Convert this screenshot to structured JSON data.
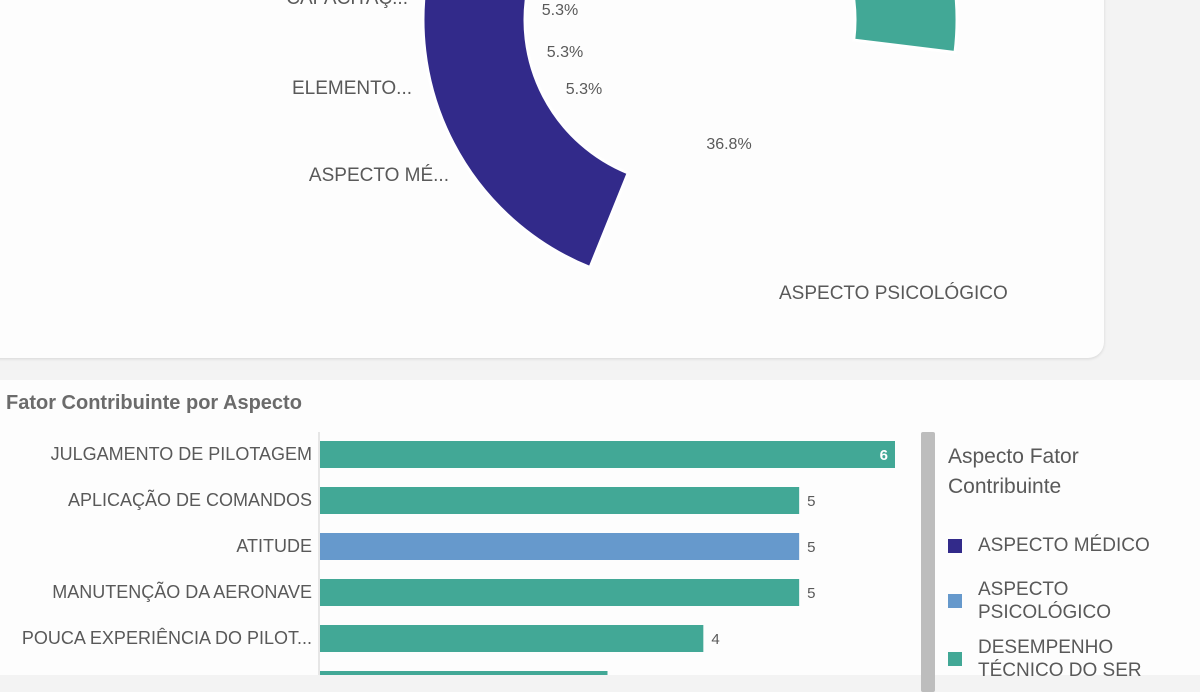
{
  "chart_data": [
    {
      "type": "pie",
      "variant": "donut",
      "slices": [
        {
          "label": "ASPECTO PSICOLÓGICO",
          "value": 36.8,
          "pct_label": "36.8%",
          "color": "#322a8a"
        },
        {
          "label": "ASPECTO MÉ...",
          "value": 5.3,
          "pct_label": "5.3%",
          "color": "#322a8a"
        },
        {
          "label": "ELEMENTO...",
          "value": 5.3,
          "pct_label": "5.3%",
          "color": "#42a896"
        },
        {
          "label": "CAPACITAÇ...",
          "value": 5.3,
          "pct_label": "5.3%",
          "color": "#42a896"
        },
        {
          "label": "",
          "value": 5.3,
          "pct_label": "",
          "color": "#42a896"
        }
      ]
    },
    {
      "type": "bar",
      "orientation": "horizontal",
      "title": "Fator Contribuinte por Aspecto",
      "categories": [
        "JULGAMENTO DE PILOTAGEM",
        "APLICAÇÃO DE COMANDOS",
        "ATITUDE",
        "MANUTENÇÃO DA AERONAVE",
        "POUCA EXPERIÊNCIA DO PILOT...",
        ""
      ],
      "values": [
        6,
        5,
        5,
        5,
        4,
        3
      ],
      "value_labels": [
        "6",
        "5",
        "5",
        "5",
        "4",
        ""
      ],
      "colors": [
        "#42a896",
        "#42a896",
        "#6699cc",
        "#42a896",
        "#42a896",
        "#42a896"
      ],
      "xlim": [
        0,
        6
      ],
      "legend": {
        "title": "Aspecto Fator Contribuinte",
        "position": "right",
        "items": [
          {
            "label": "ASPECTO MÉDICO",
            "color": "#322a8a"
          },
          {
            "label": "ASPECTO PSICOLÓGICO",
            "color": "#6699cc"
          },
          {
            "label": "DESEMPENHO TÉCNICO DO SER",
            "color": "#42a896"
          }
        ]
      }
    }
  ]
}
